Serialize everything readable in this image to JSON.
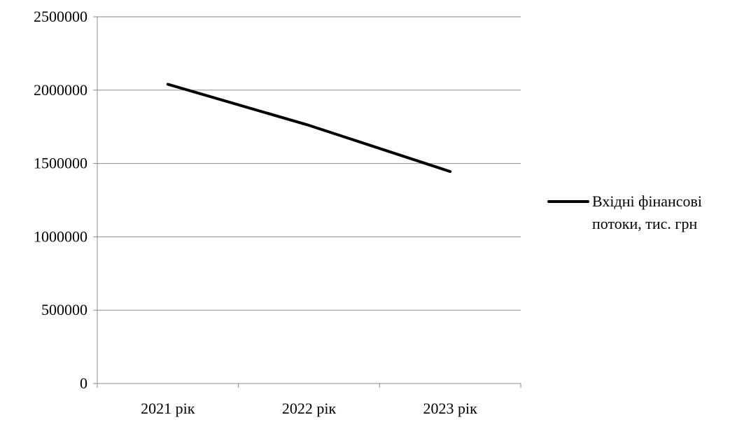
{
  "chart_data": {
    "type": "line",
    "title": "",
    "xlabel": "",
    "ylabel": "",
    "categories": [
      "2021 рік",
      "2022 рік",
      "2023 рік"
    ],
    "series": [
      {
        "name": "Вхідні фінансові потоки, тис. грн",
        "name_lines": [
          "Вхідні фінансові",
          "потоки, тис. грн"
        ],
        "values": [
          2040000,
          1760000,
          1445000
        ],
        "color": "#000000"
      }
    ],
    "ylim": [
      0,
      2500000
    ],
    "yticks": [
      0,
      500000,
      1000000,
      1500000,
      2000000,
      2500000
    ],
    "ytick_labels": [
      "0",
      "500000",
      "1000000",
      "1500000",
      "2000000",
      "2500000"
    ],
    "grid": "horizontal",
    "legend_position": "right"
  }
}
